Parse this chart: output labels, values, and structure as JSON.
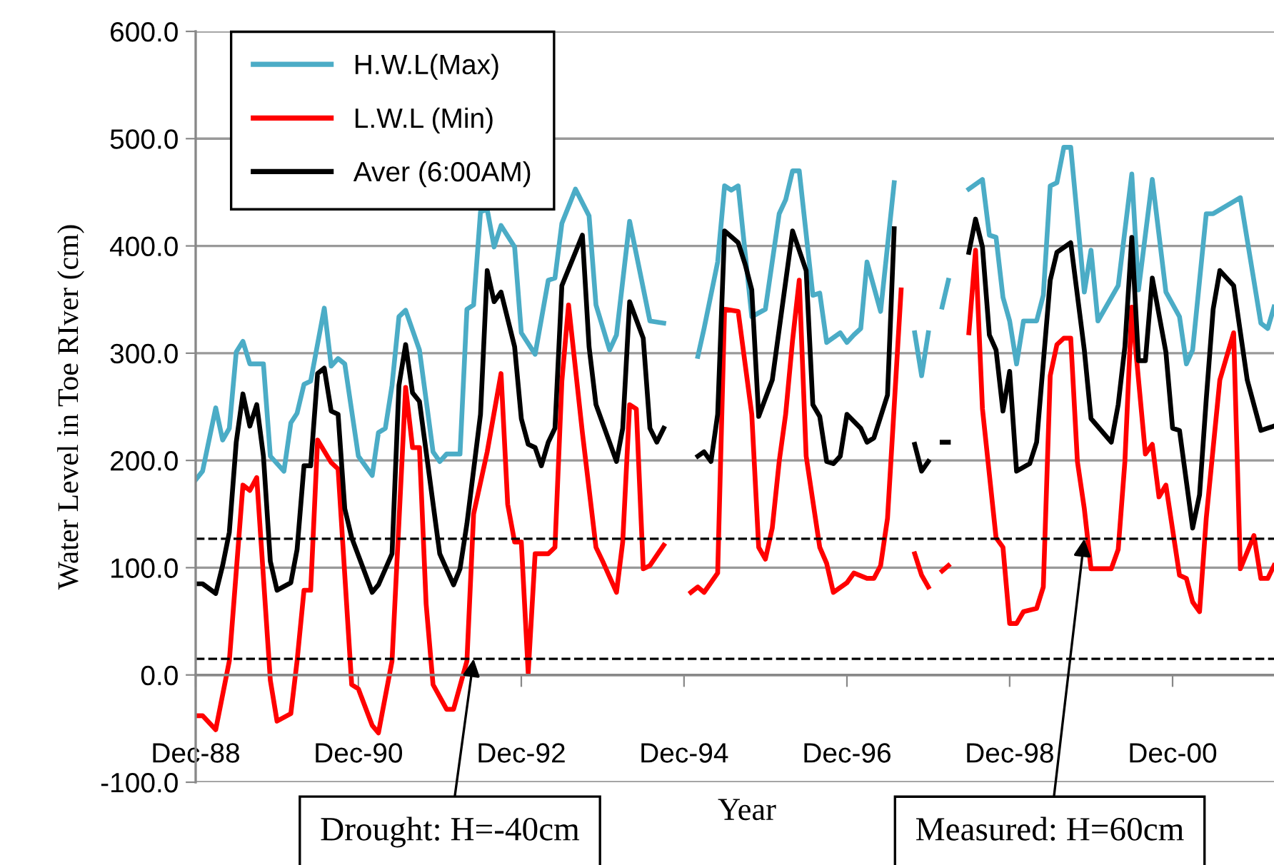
{
  "chart_data": {
    "type": "line",
    "xlabel": "Year",
    "ylabel": "Water Level in Toe RIver (cm)",
    "xlim": [
      "1988-12",
      "2002-03"
    ],
    "xticks": [
      {
        "value": "1988-12",
        "label": "Dec-88"
      },
      {
        "value": "1990-12",
        "label": "Dec-90"
      },
      {
        "value": "1992-12",
        "label": "Dec-92"
      },
      {
        "value": "1994-12",
        "label": "Dec-94"
      },
      {
        "value": "1996-12",
        "label": "Dec-96"
      },
      {
        "value": "1998-12",
        "label": "Dec-98"
      },
      {
        "value": "2000-12",
        "label": "Dec-00"
      }
    ],
    "ylim": [
      -100,
      600
    ],
    "yticks": [
      {
        "value": -100,
        "label": "-100.0"
      },
      {
        "value": 0,
        "label": "0.0"
      },
      {
        "value": 100,
        "label": "100.0"
      },
      {
        "value": 200,
        "label": "200.0"
      },
      {
        "value": 300,
        "label": "300.0"
      },
      {
        "value": 400,
        "label": "400.0"
      },
      {
        "value": 500,
        "label": "500.0"
      },
      {
        "value": 600,
        "label": "600.0"
      }
    ],
    "grid": "y",
    "legend": "top left",
    "line_style": "solid",
    "series": [
      {
        "name": "H.W.L(Max)",
        "color": "#4bacc6",
        "x": [
          "1988-12",
          "1989-01",
          "1989-03",
          "1989-04",
          "1989-05",
          "1989-06",
          "1989-07",
          "1989-08",
          "1989-10",
          "1989-11",
          "1990-01",
          "1990-02",
          "1990-03",
          "1990-04",
          "1990-05",
          "1990-07",
          "1990-08",
          "1990-09",
          "1990-10",
          "1990-12",
          "1991-02",
          "1991-03",
          "1991-04",
          "1991-05",
          "1991-06",
          "1991-07",
          "1991-09",
          "1991-11",
          "1991-12",
          "1992-01",
          "1992-03",
          "1992-04",
          "1992-05",
          "1992-06",
          "1992-07",
          "1992-08",
          "1992-09",
          "1992-11",
          "1992-12",
          "1993-02",
          "1993-04",
          "1993-05",
          "1993-06",
          "1993-08",
          "1993-10",
          "1993-11",
          "1994-01",
          "1994-02",
          "1994-04",
          "1994-07",
          "1994-09",
          "1994-11",
          "1995-02",
          "1995-03",
          "1995-05",
          "1995-06",
          "1995-07",
          "1995-08",
          "1995-10",
          "1995-12",
          "1996-02",
          "1996-03",
          "1996-04",
          "1996-05",
          "1996-07",
          "1996-08",
          "1996-09",
          "1996-11",
          "1996-12",
          "1997-01",
          "1997-02",
          "1997-03",
          "1997-05",
          "1997-07",
          "1997-09",
          "1997-10",
          "1997-11",
          "1997-12",
          "1998-01",
          "1998-02",
          "1998-03",
          "1998-04",
          "1998-06",
          "1998-08",
          "1998-09",
          "1998-10",
          "1998-11",
          "1998-12",
          "1999-01",
          "1999-02",
          "1999-04",
          "1999-05",
          "1999-06",
          "1999-07",
          "1999-08",
          "1999-09",
          "1999-11",
          "1999-12",
          "2000-01",
          "2000-04",
          "2000-06",
          "2000-07",
          "2000-09",
          "2000-11",
          "2001-01",
          "2001-02",
          "2001-03",
          "2001-05",
          "2001-06",
          "2001-10",
          "2002-01",
          "2002-02",
          "2002-03"
        ],
        "values": [
          182,
          190,
          249,
          219,
          230,
          301,
          311,
          290,
          290,
          204,
          190,
          235,
          244,
          271,
          274,
          342,
          288,
          295,
          290,
          204,
          186,
          226,
          230,
          270,
          334,
          340,
          303,
          208,
          199,
          206,
          206,
          341,
          345,
          432,
          434,
          399,
          419,
          399,
          319,
          299,
          368,
          370,
          421,
          453,
          428,
          345,
          303,
          317,
          423,
          330,
          328,
          null,
          297,
          323,
          385,
          456,
          452,
          456,
          334,
          341,
          430,
          443,
          470,
          470,
          354,
          356,
          310,
          319,
          310,
          317,
          323,
          385,
          339,
          459,
          null,
          319,
          279,
          319,
          null,
          343,
          368,
          null,
          453,
          462,
          410,
          408,
          352,
          330,
          290,
          330,
          330,
          354,
          456,
          459,
          492,
          492,
          357,
          396,
          330,
          363,
          467,
          359,
          462,
          357,
          334,
          290,
          303,
          430,
          430,
          445,
          328,
          323,
          343
        ]
      },
      {
        "name": "L.W.L (Min)",
        "color": "#ff0000",
        "x": [
          "1988-12",
          "1989-01",
          "1989-03",
          "1989-05",
          "1989-07",
          "1989-08",
          "1989-09",
          "1989-11",
          "1989-12",
          "1990-02",
          "1990-03",
          "1990-04",
          "1990-05",
          "1990-06",
          "1990-08",
          "1990-09",
          "1990-11",
          "1990-12",
          "1991-02",
          "1991-03",
          "1991-05",
          "1991-07",
          "1991-08",
          "1991-09",
          "1991-10",
          "1991-11",
          "1992-01",
          "1992-02",
          "1992-04",
          "1992-05",
          "1992-07",
          "1992-09",
          "1992-10",
          "1992-11",
          "1992-12",
          "1993-01",
          "1993-02",
          "1993-04",
          "1993-05",
          "1993-06",
          "1993-07",
          "1993-09",
          "1993-11",
          "1993-12",
          "1994-02",
          "1994-03",
          "1994-04",
          "1994-05",
          "1994-06",
          "1994-07",
          "1994-09",
          "1994-11",
          "1995-01",
          "1995-02",
          "1995-03",
          "1995-05",
          "1995-06",
          "1995-08",
          "1995-10",
          "1995-11",
          "1995-12",
          "1996-01",
          "1996-02",
          "1996-03",
          "1996-04",
          "1996-05",
          "1996-06",
          "1996-08",
          "1996-09",
          "1996-10",
          "1996-12",
          "1997-01",
          "1997-03",
          "1997-04",
          "1997-05",
          "1997-06",
          "1997-08",
          "1997-09",
          "1997-10",
          "1997-11",
          "1997-12",
          "1998-01",
          "1998-02",
          "1998-03",
          "1998-04",
          "1998-06",
          "1998-07",
          "1998-08",
          "1998-10",
          "1998-11",
          "1998-12",
          "1999-01",
          "1999-02",
          "1999-04",
          "1999-05",
          "1999-06",
          "1999-07",
          "1999-08",
          "1999-09",
          "1999-10",
          "1999-11",
          "1999-12",
          "2000-03",
          "2000-04",
          "2000-05",
          "2000-06",
          "2000-08",
          "2000-09",
          "2000-10",
          "2000-11",
          "2001-01",
          "2001-02",
          "2001-03",
          "2001-04",
          "2001-05",
          "2001-07",
          "2001-09",
          "2001-10",
          "2001-12",
          "2002-01",
          "2002-02",
          "2002-03"
        ],
        "values": [
          -38,
          -38,
          -51,
          13,
          177,
          172,
          184,
          -5,
          -43,
          -36,
          13,
          79,
          79,
          219,
          198,
          192,
          -9,
          -13,
          -47,
          -54,
          13,
          268,
          212,
          212,
          66,
          -9,
          -32,
          -32,
          13,
          150,
          208,
          281,
          159,
          124,
          124,
          2,
          113,
          113,
          119,
          274,
          345,
          226,
          119,
          106,
          77,
          124,
          252,
          248,
          99,
          102,
          121,
          null,
          77,
          82,
          77,
          95,
          341,
          339,
          243,
          119,
          108,
          137,
          199,
          243,
          312,
          368,
          204,
          119,
          104,
          77,
          86,
          95,
          90,
          90,
          102,
          146,
          359,
          null,
          113,
          93,
          82,
          null,
          97,
          102,
          null,
          319,
          396,
          248,
          128,
          119,
          48,
          48,
          59,
          62,
          82,
          279,
          308,
          314,
          314,
          199,
          155,
          99,
          99,
          117,
          199,
          343,
          206,
          215,
          166,
          177,
          93,
          90,
          68,
          59,
          146,
          275,
          319,
          99,
          130,
          90,
          90,
          102
        ]
      },
      {
        "name": "Aver (6:00AM)",
        "color": "#000000",
        "x": [
          "1988-12",
          "1989-01",
          "1989-03",
          "1989-04",
          "1989-05",
          "1989-06",
          "1989-07",
          "1989-08",
          "1989-09",
          "1989-10",
          "1989-11",
          "1989-12",
          "1990-02",
          "1990-03",
          "1990-04",
          "1990-05",
          "1990-06",
          "1990-07",
          "1990-08",
          "1990-09",
          "1990-10",
          "1990-11",
          "1991-02",
          "1991-03",
          "1991-05",
          "1991-06",
          "1991-07",
          "1991-08",
          "1991-09",
          "1991-12",
          "1992-02",
          "1992-03",
          "1992-04",
          "1992-06",
          "1992-07",
          "1992-08",
          "1992-09",
          "1992-11",
          "1992-12",
          "1993-01",
          "1993-02",
          "1993-03",
          "1993-04",
          "1993-05",
          "1993-06",
          "1993-09",
          "1993-10",
          "1993-11",
          "1994-02",
          "1994-03",
          "1994-04",
          "1994-06",
          "1994-07",
          "1994-08",
          "1994-09",
          "1994-11",
          "1995-02",
          "1995-03",
          "1995-04",
          "1995-05",
          "1995-06",
          "1995-08",
          "1995-09",
          "1995-10",
          "1995-11",
          "1996-01",
          "1996-04",
          "1996-06",
          "1996-07",
          "1996-08",
          "1996-09",
          "1996-10",
          "1996-11",
          "1996-12",
          "1997-02",
          "1997-03",
          "1997-04",
          "1997-06",
          "1997-07",
          "1997-09",
          "1997-10",
          "1997-11",
          "1997-12",
          "1998-01",
          "1998-02",
          "1998-03",
          "1998-04",
          "1998-06",
          "1998-07",
          "1998-08",
          "1998-09",
          "1998-10",
          "1998-11",
          "1998-12",
          "1999-01",
          "1999-03",
          "1999-04",
          "1999-06",
          "1999-07",
          "1999-09",
          "1999-11",
          "1999-12",
          "2000-03",
          "2000-04",
          "2000-05",
          "2000-06",
          "2000-07",
          "2000-08",
          "2000-09",
          "2000-11",
          "2000-12",
          "2001-01",
          "2001-03",
          "2001-04",
          "2001-05",
          "2001-06",
          "2001-07",
          "2001-09",
          "2001-11",
          "2002-01",
          "2002-03"
        ],
        "values": [
          85,
          85,
          76,
          102,
          133,
          217,
          262,
          232,
          252,
          204,
          106,
          79,
          86,
          117,
          195,
          195,
          281,
          286,
          246,
          243,
          155,
          128,
          77,
          84,
          113,
          270,
          308,
          263,
          255,
          113,
          84,
          99,
          141,
          243,
          377,
          348,
          357,
          306,
          239,
          215,
          212,
          195,
          217,
          230,
          363,
          410,
          306,
          252,
          199,
          230,
          348,
          314,
          230,
          217,
          230,
          null,
          204,
          208,
          199,
          243,
          414,
          403,
          383,
          359,
          241,
          275,
          414,
          377,
          252,
          241,
          199,
          197,
          204,
          243,
          230,
          217,
          221,
          261,
          416,
          null,
          215,
          190,
          199,
          null,
          217,
          217,
          null,
          394,
          425,
          399,
          317,
          303,
          246,
          283,
          190,
          197,
          217,
          368,
          394,
          403,
          303,
          239,
          217,
          252,
          306,
          408,
          293,
          293,
          370,
          301,
          230,
          228,
          137,
          168,
          257,
          341,
          377,
          363,
          275,
          228,
          232
        ]
      }
    ],
    "ref_lines": [
      {
        "axis": "y",
        "value": 127,
        "color": "#000000",
        "line_style": "dashed"
      },
      {
        "axis": "y",
        "value": 15,
        "color": "#000000",
        "line_style": "dashed"
      }
    ],
    "annotations": [
      {
        "text": "Drought: H=-40cm",
        "x": "1992-05",
        "y": 15
      },
      {
        "text": "Measured: H=60cm",
        "x": "1999-11",
        "y": 127
      }
    ]
  }
}
